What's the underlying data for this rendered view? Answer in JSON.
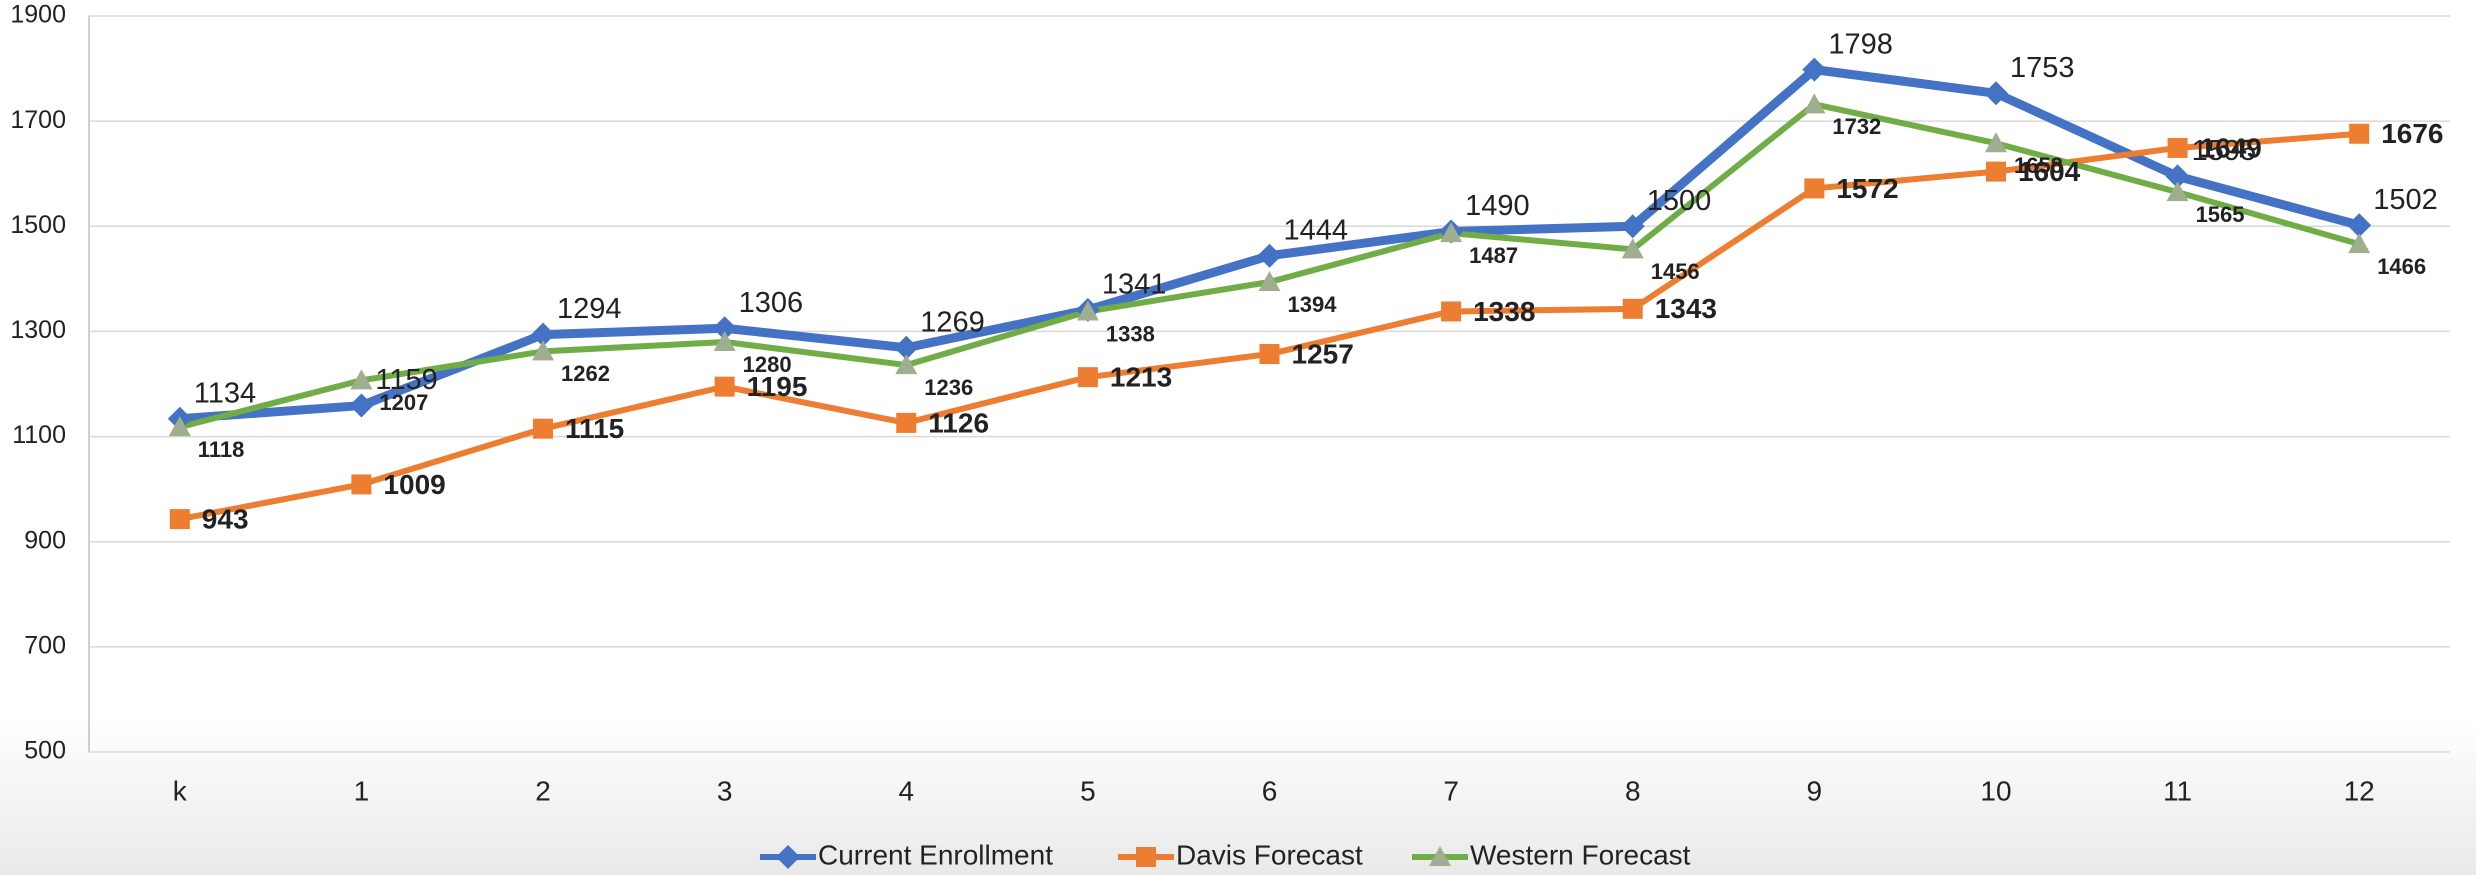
{
  "chart_data": {
    "type": "line",
    "categories": [
      "k",
      "1",
      "2",
      "3",
      "4",
      "5",
      "6",
      "7",
      "8",
      "9",
      "10",
      "11",
      "12"
    ],
    "series": [
      {
        "name": "Current Enrollment",
        "color": "#4472c4",
        "values": [
          1134,
          1159,
          1294,
          1306,
          1269,
          1341,
          1444,
          1490,
          1500,
          1798,
          1753,
          1595,
          1502
        ]
      },
      {
        "name": "Davis Forecast",
        "color": "#ed7d31",
        "values": [
          943,
          1009,
          1115,
          1195,
          1126,
          1213,
          1257,
          1338,
          1343,
          1572,
          1604,
          1649,
          1676
        ]
      },
      {
        "name": "Western Forecast",
        "color": "#70ad47",
        "values": [
          1118,
          1207,
          1262,
          1280,
          1236,
          1338,
          1394,
          1487,
          1456,
          1732,
          1658,
          1565,
          1466
        ]
      }
    ],
    "ylim": [
      500,
      1900
    ],
    "yticks": [
      500,
      700,
      900,
      1100,
      1300,
      1500,
      1700,
      1900
    ],
    "grid": true,
    "legend": "bottom"
  }
}
